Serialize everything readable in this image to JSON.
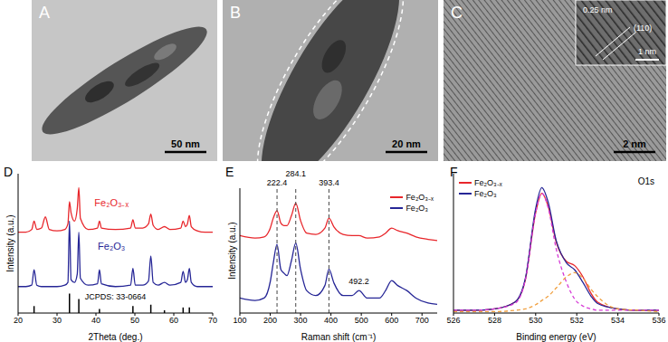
{
  "images": [
    {
      "panel": "A",
      "scale_bar": "50 nm"
    },
    {
      "panel": "B",
      "scale_bar": "20 nm"
    },
    {
      "panel": "C",
      "scale_bar": "2 nm",
      "inset": {
        "scale_bar": "1 nm",
        "spacing": "0.25 nm",
        "plane": "(110)"
      }
    }
  ],
  "chart_data": [
    {
      "panel": "D",
      "type": "line",
      "x_label": "2Theta (deg.)",
      "y_label": "Intensity (a.u.)",
      "x": [
        20,
        22,
        23.5,
        24.1,
        24.8,
        26,
        27,
        28,
        30,
        32,
        32.8,
        33.2,
        33.6,
        34.5,
        35.2,
        35.6,
        36.0,
        38,
        40.4,
        40.9,
        41.4,
        45,
        48.9,
        49.5,
        50.1,
        52,
        53.5,
        54.1,
        54.7,
        56,
        57.6,
        59,
        61.8,
        62.4,
        63,
        63.5,
        64.0,
        64.5,
        66,
        68,
        70
      ],
      "series": [
        {
          "name": "Fe₂O₃₋ₓ",
          "color": "#e8262b",
          "line_style": "solid",
          "values": [
            58,
            58,
            60,
            66,
            60,
            61,
            69,
            60,
            59,
            60,
            64,
            80,
            72,
            66,
            75,
            90,
            68,
            60,
            61,
            66,
            61,
            60,
            61,
            67,
            61,
            61,
            64,
            71,
            63,
            60,
            62,
            60,
            61,
            66,
            62,
            64,
            70,
            62,
            59,
            58,
            58
          ]
        },
        {
          "name": "Fe₂O₃",
          "color": "#262696",
          "line_style": "solid",
          "values": [
            19,
            19,
            20,
            31,
            20,
            19,
            19,
            19,
            19,
            20,
            22,
            66,
            24,
            22,
            28,
            58,
            25,
            20,
            21,
            31,
            21,
            19,
            20,
            32,
            20,
            20,
            23,
            41,
            22,
            20,
            22,
            20,
            22,
            30,
            22,
            24,
            32,
            22,
            19,
            19,
            19
          ]
        },
        {
          "name": "JCPDS: 33-0664",
          "type": "bar",
          "color": "#000000",
          "x": [
            24.1,
            33.2,
            35.6,
            40.9,
            49.5,
            54.1,
            57.6,
            62.4,
            64.0
          ],
          "values": [
            5,
            14,
            10,
            3,
            5,
            6,
            2,
            4,
            4
          ]
        }
      ],
      "xlim": [
        20,
        70
      ],
      "xticks": [
        20,
        30,
        40,
        50,
        60,
        70
      ],
      "ylim": [
        0,
        100
      ],
      "tick_labels": "x"
    },
    {
      "panel": "E",
      "type": "line",
      "x_label": "Raman shift (cm⁻¹)",
      "y_label": "Intensity (a.u.)",
      "x": [
        100,
        150,
        180,
        200,
        210,
        222.4,
        235,
        245,
        255,
        270,
        284.1,
        300,
        320,
        350,
        380,
        393.4,
        410,
        440,
        470,
        492.2,
        520,
        560,
        580,
        600,
        620,
        650,
        680,
        720,
        750
      ],
      "series": [
        {
          "name": "Fe₂O₃₋ₓ",
          "color": "#e8262b",
          "line_style": "solid",
          "values": [
            62,
            60,
            61,
            68,
            76,
            82,
            72,
            70,
            70,
            78,
            88,
            74,
            64,
            63,
            68,
            76,
            69,
            63,
            62,
            62,
            60,
            61,
            64,
            68,
            66,
            64,
            61,
            59,
            58
          ]
        },
        {
          "name": "Fe₂O₃",
          "color": "#262696",
          "line_style": "solid",
          "values": [
            12,
            10,
            12,
            25,
            40,
            55,
            35,
            32,
            30,
            42,
            56,
            35,
            18,
            14,
            22,
            35,
            24,
            14,
            14,
            18,
            12,
            12,
            18,
            26,
            22,
            18,
            12,
            8,
            7
          ]
        }
      ],
      "annotations": [
        {
          "x": 222.4,
          "line_style": "dashed"
        },
        {
          "x": 284.1,
          "line_style": "dashed"
        },
        {
          "x": 393.4,
          "line_style": "dashed"
        },
        {
          "x": 492.2
        }
      ],
      "xlim": [
        100,
        750
      ],
      "xticks": [
        100,
        200,
        300,
        400,
        500,
        600,
        700
      ],
      "ylim": [
        0,
        100
      ],
      "tick_labels": "x",
      "legend": "upper right"
    },
    {
      "panel": "F",
      "type": "line",
      "title": "O1s",
      "x_label": "Binding energy (eV)",
      "x": [
        526,
        527,
        528,
        529,
        529.5,
        530,
        530.3,
        530.6,
        531,
        531.5,
        531.9,
        532.3,
        532.7,
        533,
        534,
        535,
        536
      ],
      "series": [
        {
          "name": "Fe₂O₃₋ₓ",
          "color": "#e8262b",
          "line_style": "solid",
          "values": [
            2,
            2,
            3,
            8,
            24,
            72,
            86,
            77,
            51,
            37,
            34,
            26,
            14,
            8,
            3,
            2,
            2
          ]
        },
        {
          "name": "Fe₂O₃",
          "color": "#262696",
          "line_style": "solid",
          "values": [
            2,
            2,
            3,
            8,
            25,
            75,
            90,
            80,
            52,
            36,
            31,
            22,
            12,
            7,
            3,
            2,
            2
          ]
        },
        {
          "color": "#d63ad6",
          "line_style": "dashed",
          "values": [
            2,
            2,
            3,
            7,
            24,
            72,
            86,
            76,
            46,
            22,
            10,
            5,
            3,
            2,
            2,
            2,
            2
          ]
        },
        {
          "color": "#f0a040",
          "line_style": "dashed",
          "values": [
            1,
            1,
            1,
            2,
            3,
            6,
            9,
            12,
            18,
            26,
            29,
            25,
            17,
            12,
            3,
            2,
            1
          ]
        }
      ],
      "xlim": [
        526,
        536
      ],
      "xticks": [
        526,
        528,
        530,
        532,
        534,
        536
      ],
      "ylim": [
        0,
        100
      ],
      "tick_labels": "x",
      "legend": "upper left"
    }
  ]
}
